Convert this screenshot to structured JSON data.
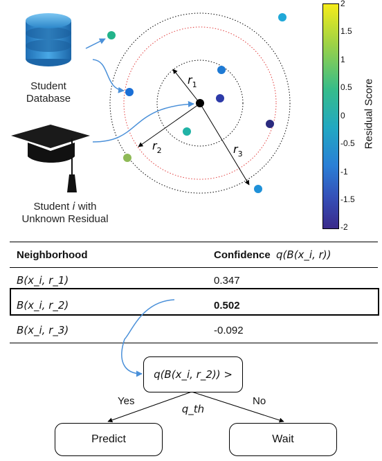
{
  "database": {
    "label_line1": "Student",
    "label_line2": "Database"
  },
  "student": {
    "label_line1_pre": "Student ",
    "label_line1_var": "i",
    "label_line1_post": " with",
    "label_line2": "Unknown Residual"
  },
  "radii": {
    "r1": "r",
    "r1_sub": "1",
    "r2": "r",
    "r2_sub": "2",
    "r3": "r",
    "r3_sub": "3"
  },
  "colorbar": {
    "title": "Residual Score",
    "ticks": [
      "2",
      "1.5",
      "1",
      "0.5",
      "0",
      "-0.5",
      "-1",
      "-1.5",
      "-2"
    ],
    "colors": {
      "top": "#f2ea1a",
      "upper": "#7ccc63",
      "mid": "#21b3a6",
      "lower": "#2a7fd6",
      "bottom": "#3a2a8a"
    }
  },
  "table": {
    "col1": "Neighborhood",
    "col2": "Confidence",
    "col2_formula": "q(B(x_i, r))",
    "rows": [
      {
        "neighborhood": "B(x_i, r_1)",
        "confidence": "0.347",
        "highlight": false
      },
      {
        "neighborhood": "B(x_i, r_2)",
        "confidence": "0.502",
        "highlight": true
      },
      {
        "neighborhood": "B(x_i, r_3)",
        "confidence": "-0.092",
        "highlight": false
      }
    ]
  },
  "decision": {
    "condition": "q(B(x_i, r_2)) > q_th",
    "yes": "Yes",
    "no": "No",
    "predict": "Predict",
    "wait": "Wait"
  },
  "accent_arrow_color": "#4a90d9",
  "center_point_color": "#000000"
}
